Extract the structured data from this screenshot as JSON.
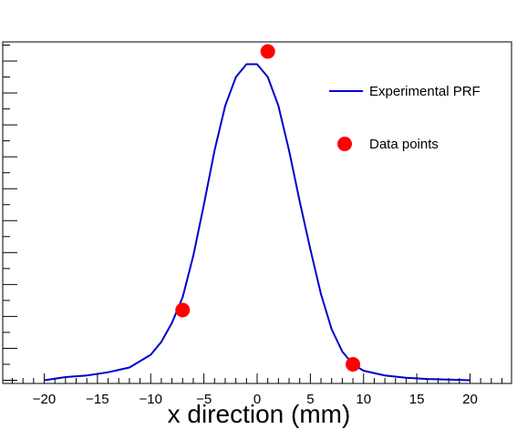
{
  "chart_data": {
    "type": "line",
    "xlabel": "x direction (mm)",
    "ylabel": "",
    "xlim": [
      -23.9,
      23.9
    ],
    "ylim": [
      -0.01,
      1.06
    ],
    "x_ticks": [
      -20,
      -15,
      -10,
      -5,
      0,
      5,
      10,
      15,
      20
    ],
    "grid": false,
    "legend": {
      "position": "top-right",
      "entries": [
        "Experimental PRF",
        "Data points"
      ]
    },
    "series": [
      {
        "name": "Experimental PRF",
        "kind": "line",
        "color": "#0000cc",
        "x": [
          -20,
          -18,
          -16,
          -14,
          -12,
          -10,
          -9,
          -8,
          -7,
          -6,
          -5,
          -4,
          -3,
          -2,
          -1,
          0,
          1,
          2,
          3,
          4,
          5,
          6,
          7,
          8,
          9,
          10,
          12,
          14,
          16,
          18,
          20
        ],
        "y": [
          0.0,
          0.01,
          0.015,
          0.025,
          0.04,
          0.08,
          0.12,
          0.18,
          0.26,
          0.39,
          0.55,
          0.72,
          0.86,
          0.95,
          0.99,
          0.99,
          0.95,
          0.86,
          0.72,
          0.56,
          0.41,
          0.27,
          0.16,
          0.09,
          0.05,
          0.03,
          0.015,
          0.008,
          0.004,
          0.002,
          0.0
        ]
      },
      {
        "name": "Data points",
        "kind": "scatter",
        "color": "#ff0000",
        "x": [
          -7.0,
          1.0,
          9.0
        ],
        "y": [
          0.22,
          1.03,
          0.05
        ]
      }
    ]
  }
}
